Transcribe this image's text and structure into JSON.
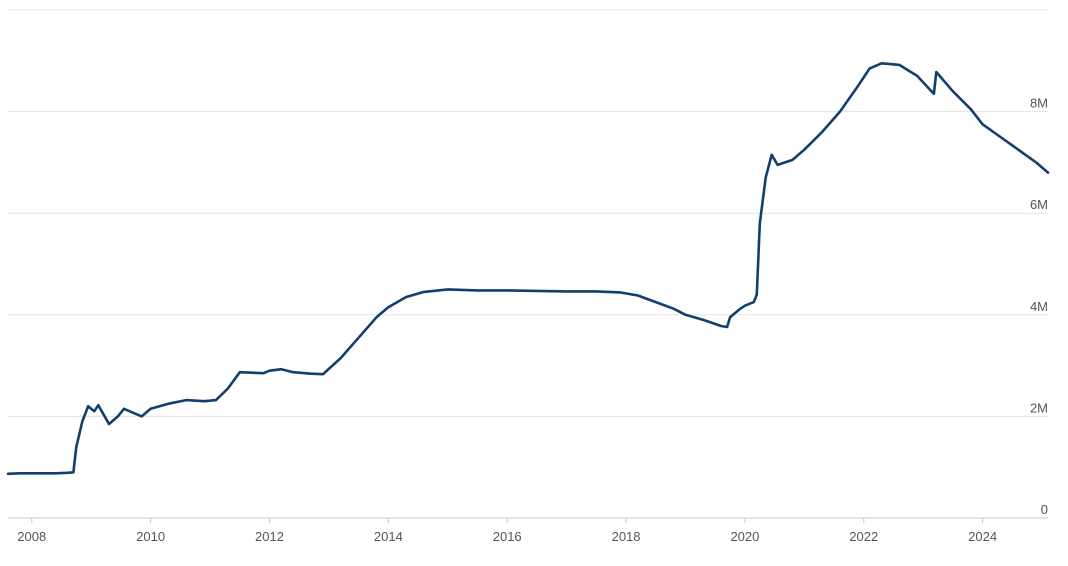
{
  "chart_data": {
    "type": "line",
    "title": "",
    "xlabel": "",
    "ylabel": "",
    "xlim": [
      2007.6,
      2025.1
    ],
    "ylim": [
      0,
      10000000
    ],
    "grid": "horizontal",
    "legend": "none",
    "x_ticks": [
      {
        "value": 2008,
        "label": "2008"
      },
      {
        "value": 2010,
        "label": "2010"
      },
      {
        "value": 2012,
        "label": "2012"
      },
      {
        "value": 2014,
        "label": "2014"
      },
      {
        "value": 2016,
        "label": "2016"
      },
      {
        "value": 2018,
        "label": "2018"
      },
      {
        "value": 2020,
        "label": "2020"
      },
      {
        "value": 2022,
        "label": "2022"
      },
      {
        "value": 2024,
        "label": "2024"
      }
    ],
    "y_ticks": [
      {
        "value": 0,
        "label": "0"
      },
      {
        "value": 2000000,
        "label": "2M"
      },
      {
        "value": 4000000,
        "label": "4M"
      },
      {
        "value": 6000000,
        "label": "6M"
      },
      {
        "value": 8000000,
        "label": "8M"
      }
    ],
    "y_grid_values": [
      2000000,
      4000000,
      6000000,
      8000000,
      10000000
    ],
    "series": [
      {
        "color": "#123f6e",
        "points": [
          [
            2007.6,
            870000
          ],
          [
            2007.8,
            880000
          ],
          [
            2008.0,
            880000
          ],
          [
            2008.2,
            880000
          ],
          [
            2008.4,
            880000
          ],
          [
            2008.6,
            890000
          ],
          [
            2008.7,
            900000
          ],
          [
            2008.75,
            1400000
          ],
          [
            2008.85,
            1900000
          ],
          [
            2008.95,
            2200000
          ],
          [
            2009.05,
            2100000
          ],
          [
            2009.12,
            2220000
          ],
          [
            2009.3,
            1850000
          ],
          [
            2009.45,
            2000000
          ],
          [
            2009.55,
            2150000
          ],
          [
            2009.65,
            2100000
          ],
          [
            2009.85,
            2000000
          ],
          [
            2010.0,
            2150000
          ],
          [
            2010.3,
            2250000
          ],
          [
            2010.6,
            2320000
          ],
          [
            2010.9,
            2300000
          ],
          [
            2011.1,
            2320000
          ],
          [
            2011.3,
            2550000
          ],
          [
            2011.5,
            2870000
          ],
          [
            2011.9,
            2850000
          ],
          [
            2012.0,
            2900000
          ],
          [
            2012.2,
            2930000
          ],
          [
            2012.4,
            2870000
          ],
          [
            2012.7,
            2840000
          ],
          [
            2012.9,
            2830000
          ],
          [
            2013.2,
            3150000
          ],
          [
            2013.5,
            3550000
          ],
          [
            2013.8,
            3950000
          ],
          [
            2014.0,
            4150000
          ],
          [
            2014.3,
            4350000
          ],
          [
            2014.6,
            4450000
          ],
          [
            2015.0,
            4500000
          ],
          [
            2015.5,
            4480000
          ],
          [
            2016.0,
            4480000
          ],
          [
            2016.5,
            4470000
          ],
          [
            2017.0,
            4460000
          ],
          [
            2017.5,
            4460000
          ],
          [
            2017.9,
            4440000
          ],
          [
            2018.2,
            4380000
          ],
          [
            2018.5,
            4250000
          ],
          [
            2018.8,
            4120000
          ],
          [
            2019.0,
            4000000
          ],
          [
            2019.3,
            3900000
          ],
          [
            2019.6,
            3780000
          ],
          [
            2019.7,
            3760000
          ],
          [
            2019.75,
            3950000
          ],
          [
            2019.9,
            4100000
          ],
          [
            2020.0,
            4180000
          ],
          [
            2020.15,
            4250000
          ],
          [
            2020.2,
            4400000
          ],
          [
            2020.25,
            5800000
          ],
          [
            2020.35,
            6700000
          ],
          [
            2020.45,
            7150000
          ],
          [
            2020.55,
            6950000
          ],
          [
            2020.8,
            7050000
          ],
          [
            2021.0,
            7250000
          ],
          [
            2021.3,
            7600000
          ],
          [
            2021.6,
            8000000
          ],
          [
            2021.9,
            8500000
          ],
          [
            2022.1,
            8850000
          ],
          [
            2022.3,
            8950000
          ],
          [
            2022.6,
            8920000
          ],
          [
            2022.9,
            8700000
          ],
          [
            2023.1,
            8450000
          ],
          [
            2023.18,
            8350000
          ],
          [
            2023.22,
            8780000
          ],
          [
            2023.5,
            8400000
          ],
          [
            2023.8,
            8050000
          ],
          [
            2024.0,
            7750000
          ],
          [
            2024.3,
            7500000
          ],
          [
            2024.6,
            7250000
          ],
          [
            2024.9,
            7000000
          ],
          [
            2025.1,
            6800000
          ]
        ]
      }
    ]
  }
}
